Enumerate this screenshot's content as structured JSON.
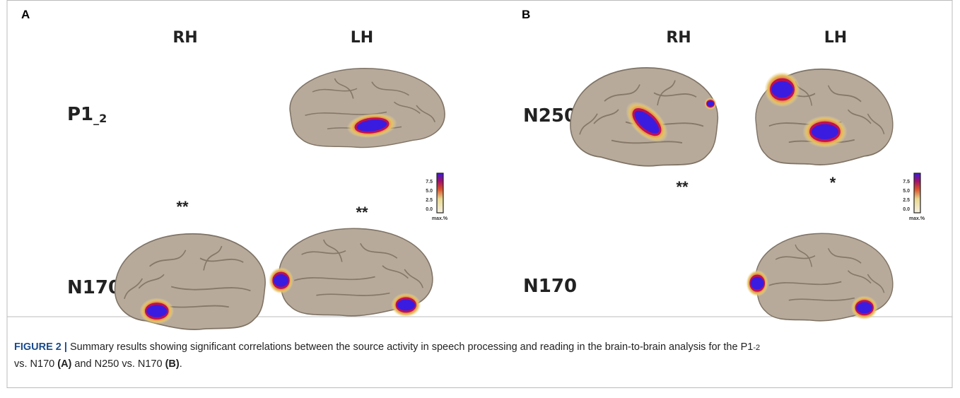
{
  "panels": [
    {
      "label": "A",
      "columns": [
        "RH",
        "LH"
      ],
      "rows": [
        {
          "label": "P1",
          "subscript": "_2"
        },
        {
          "label": "N170"
        }
      ],
      "significance": [
        "**",
        "**"
      ],
      "colorbar": {
        "ticks": [
          "7.5",
          "5.0",
          "2.5",
          "0.0"
        ],
        "unit": "max.%"
      }
    },
    {
      "label": "B",
      "columns": [
        "RH",
        "LH"
      ],
      "rows": [
        {
          "label": "N250"
        },
        {
          "label": "N170"
        }
      ],
      "significance": [
        "**",
        "*"
      ],
      "colorbar": {
        "ticks": [
          "7.5",
          "5.0",
          "2.5",
          "0.0"
        ],
        "unit": "max.%"
      }
    }
  ],
  "caption": {
    "figure_label": "FIGURE 2 |",
    "parts": [
      "Summary results showing significant correlations between the source activity in speech processing and reading in the brain-to-brain analysis for the P1",
      "-2",
      " vs. N170 ",
      "(A)",
      " and N250 vs. N170 ",
      "(B)",
      "."
    ]
  }
}
